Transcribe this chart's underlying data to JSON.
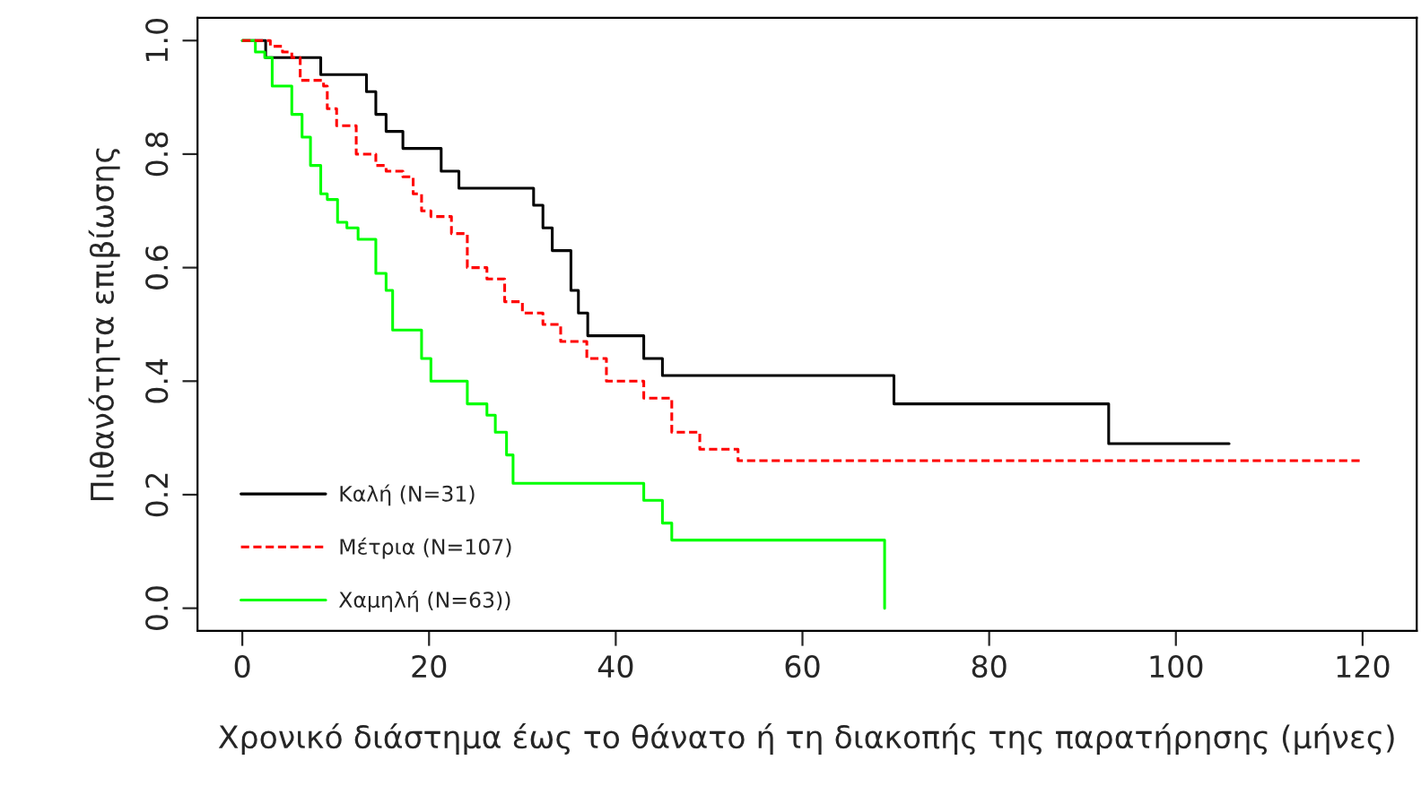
{
  "chart_data": {
    "type": "step",
    "xlabel": "Χρονικό διάστημα έως το θάνατο ή τη διακοπής της παρατήρησης (μήνες)",
    "ylabel": "Πιθανότητα επιβίωσης",
    "xlim": [
      -4.8,
      125.8
    ],
    "ylim": [
      -0.04,
      1.04
    ],
    "xticks": [
      0,
      20,
      40,
      60,
      80,
      100,
      120
    ],
    "yticks": [
      {
        "value": 0,
        "label": "0.0"
      },
      {
        "value": 0.2,
        "label": "0.2"
      },
      {
        "value": 0.4,
        "label": "0.4"
      },
      {
        "value": 0.6,
        "label": "0.6"
      },
      {
        "value": 0.8,
        "label": "0.8"
      },
      {
        "value": 1,
        "label": "1.0"
      }
    ],
    "grid": false,
    "legend": "bottom left",
    "series": [
      {
        "name": "Καλή (N=31)",
        "color": "#000000",
        "line_style": "solid",
        "x": [
          0,
          2.5,
          8.4,
          13.3,
          14.3,
          15.4,
          17.2,
          21.3,
          23.2,
          31.2,
          32.2,
          33.2,
          35.2,
          36,
          37,
          43,
          45,
          69.8,
          92.8,
          105.7
        ],
        "values": [
          1,
          0.97,
          0.94,
          0.91,
          0.87,
          0.84,
          0.81,
          0.77,
          0.74,
          0.71,
          0.67,
          0.63,
          0.56,
          0.52,
          0.48,
          0.44,
          0.41,
          0.36,
          0.29,
          0.29
        ]
      },
      {
        "name": "Μέτρια (N=107)",
        "color": "#ff0000",
        "line_style": "dashed",
        "x": [
          0,
          3,
          4.3,
          5.3,
          6.2,
          8.7,
          9.1,
          10.1,
          12.2,
          14.3,
          15.4,
          17.2,
          18.3,
          19.2,
          20.2,
          22.4,
          24.1,
          26.2,
          28.1,
          30,
          32.2,
          34.1,
          36.9,
          39,
          43,
          46,
          49,
          53.1,
          120
        ],
        "values": [
          1,
          0.99,
          0.98,
          0.97,
          0.93,
          0.92,
          0.88,
          0.85,
          0.8,
          0.78,
          0.77,
          0.76,
          0.73,
          0.7,
          0.69,
          0.66,
          0.6,
          0.58,
          0.54,
          0.52,
          0.5,
          0.47,
          0.44,
          0.4,
          0.37,
          0.31,
          0.28,
          0.26,
          0.26
        ]
      },
      {
        "name": "Χαμηλή (N=63))",
        "color": "#00ff00",
        "line_style": "solid",
        "x": [
          0,
          1.4,
          2.4,
          3.2,
          5.3,
          6.4,
          7.3,
          8.4,
          9.1,
          10.2,
          11.2,
          12.4,
          14.3,
          15.4,
          16.1,
          19.2,
          20.2,
          24.1,
          26.2,
          27.1,
          28.3,
          29,
          43,
          45,
          46,
          68.8
        ],
        "values": [
          1,
          0.98,
          0.97,
          0.92,
          0.87,
          0.83,
          0.78,
          0.73,
          0.72,
          0.68,
          0.67,
          0.65,
          0.59,
          0.56,
          0.49,
          0.44,
          0.4,
          0.36,
          0.34,
          0.31,
          0.27,
          0.22,
          0.19,
          0.15,
          0.12,
          0
        ]
      }
    ]
  }
}
